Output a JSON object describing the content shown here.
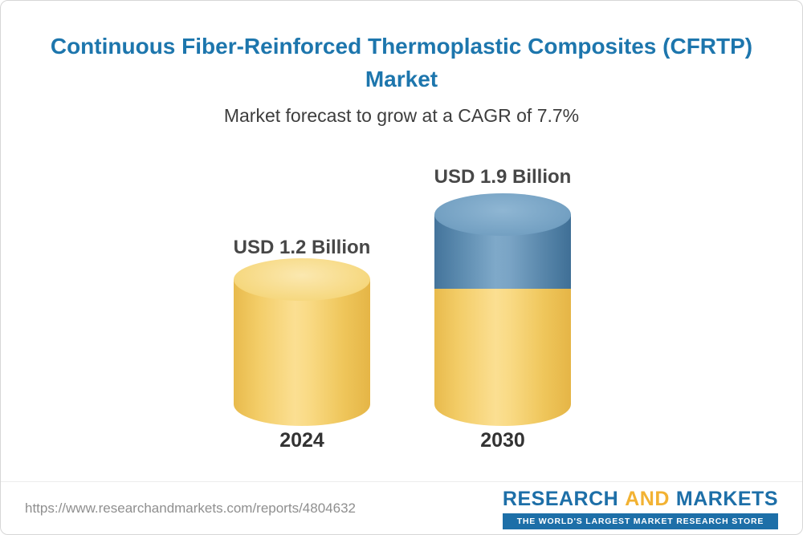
{
  "header": {
    "title_line1": "Continuous Fiber-Reinforced Thermoplastic Composites (CFRTP)",
    "title_line2": "Market",
    "subtitle": "Market forecast to grow at a CAGR of 7.7%"
  },
  "chart_data": {
    "type": "bar",
    "style": "3d-cylinder",
    "title": "Continuous Fiber-Reinforced Thermoplastic Composites (CFRTP) Market",
    "subtitle": "Market forecast to grow at a CAGR of 7.7%",
    "categories": [
      "2024",
      "2030"
    ],
    "values": [
      1.2,
      1.9
    ],
    "unit": "USD Billion",
    "data_labels": [
      "USD 1.2 Billion",
      "USD 1.9 Billion"
    ],
    "cagr_percent": 7.7,
    "colors": {
      "bar_primary": "#F4CE67",
      "bar_secondary": "#5D8CB0",
      "title_blue": "#1D76AD"
    },
    "grid": false,
    "legend": false
  },
  "footer": {
    "url": "https://www.researchandmarkets.com/reports/4804632",
    "logo": {
      "word1": "RESEARCH",
      "word2": "AND",
      "word3": "MARKETS",
      "tagline": "THE WORLD'S LARGEST MARKET RESEARCH STORE"
    }
  }
}
